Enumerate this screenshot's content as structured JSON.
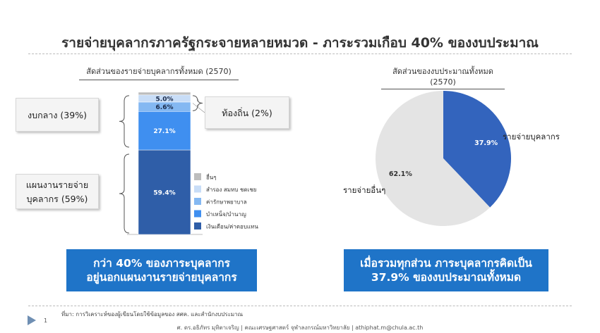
{
  "title": "รายจ่ายบุคลากรภาครัฐกระจายหลายหมวด - ภาระรวมเกือบ 40% ของงบประมาณ",
  "left_chart_title": "สัดส่วนของรายจ่ายบุคลากรทั้งหมด (2570)",
  "right_chart_title": "สัดส่วนของงบประมาณทั้งหมด (2570)",
  "callouts": {
    "central": "งบกลาง (39%)",
    "local": "ท้องถิ่น (2%)",
    "personnel_line1": "แผนงานรายจ่าย",
    "personnel_line2": "บุคลากร (59%)"
  },
  "banners": {
    "left_line1": "กว่า 40% ของภาระบุคลากร",
    "left_line2": "อยู่นอกแผนงานรายจ่ายบุคลากร",
    "right_line1": "เมื่อรวมทุกส่วน ภาระบุคลากรคิดเป็น",
    "right_line2": "37.9% ของงบประมาณทั้งหมด"
  },
  "footer": {
    "source": "ที่มา: การวิเคราะห์ของผู้เขียนโดยใช้ข้อมูลของ สศค. และสำนักงบประมาณ",
    "page": "1",
    "credit": "ศ. ดร.อธิภัทร มุทิตาเจริญ | คณะเศรษฐศาสตร์ จุฬาลงกรณ์มหาวิทยาลัย | athiphat.m@chula.ac.th"
  },
  "chart_data": [
    {
      "type": "bar",
      "stacked": true,
      "title": "สัดส่วนของรายจ่ายบุคลากรทั้งหมด (2570)",
      "ylim": [
        0,
        100
      ],
      "legend_position": "right",
      "series": [
        {
          "name": "เงินเดือน/ค่าตอบแทน",
          "value": 59.4,
          "label": "59.4%",
          "color": "#2f5ea8"
        },
        {
          "name": "บำเหน็จ/บำนาญ",
          "value": 27.1,
          "label": "27.1%",
          "color": "#3f8ff0"
        },
        {
          "name": "ค่ารักษาพยาบาล",
          "value": 6.6,
          "label": "6.6%",
          "color": "#84b8f2"
        },
        {
          "name": "สำรอง สมทบ ชดเชย",
          "value": 5.0,
          "label": "5.0%",
          "color": "#c8ddf7"
        },
        {
          "name": "อื่นๆ",
          "value": 1.9,
          "label": "",
          "color": "#bdbdbd"
        }
      ]
    },
    {
      "type": "pie",
      "title": "สัดส่วนของงบประมาณทั้งหมด (2570)",
      "slices": [
        {
          "name": "รายจ่ายบุคลากร",
          "value": 37.9,
          "label": "37.9%",
          "color": "#3364bd"
        },
        {
          "name": "รายจ่ายอื่นๆ",
          "value": 62.1,
          "label": "62.1%",
          "color": "#e4e4e4"
        }
      ]
    }
  ]
}
